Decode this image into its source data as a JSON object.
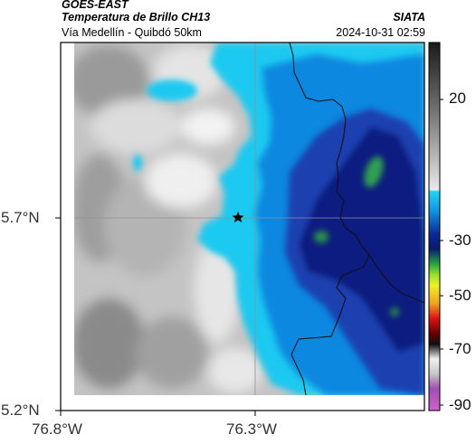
{
  "header": {
    "satellite": "GOES-EAST",
    "product": "Temperatura de Brillo CH13",
    "route": "Vía Medellín - Quibdó 50km",
    "org": "SIATA",
    "timestamp": "2024-10-31 02:59"
  },
  "axes": {
    "lat_labels": [
      "5.7°N",
      "5.2°N"
    ],
    "lon_labels": [
      "76.8°W",
      "76.3°W"
    ]
  },
  "colorbar": {
    "tick_labels": [
      "20",
      "-30",
      "-50",
      "-70",
      "-90"
    ],
    "tick_values": [
      20,
      -30,
      -50,
      -70,
      -90
    ],
    "range": [
      -93,
      46
    ],
    "colors": {
      "gray_warm": "#2a2a2a",
      "gray_cold": "#e0e0e0",
      "cyan": "#1cc9f0",
      "blue": "#1060d0",
      "navy": "#0a1a78",
      "green": "#2ea050",
      "yellow": "#f0e020",
      "red": "#e01010",
      "black": "#000000",
      "magenta": "#a040a0"
    }
  },
  "map": {
    "marker": "star",
    "features": [
      "cloud-cover",
      "border-line",
      "gridlines"
    ]
  }
}
